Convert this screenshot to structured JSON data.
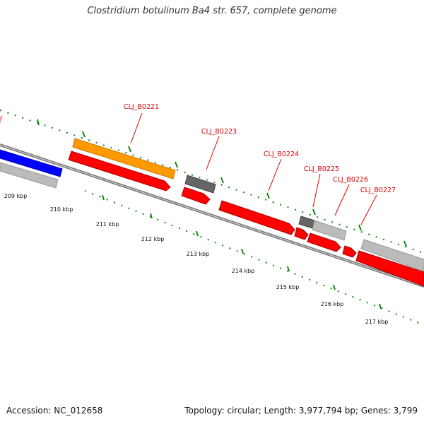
{
  "title": "Clostridium botulinum Ba4 str. 657, complete genome",
  "footer": {
    "accession": "Accession: NC_012658",
    "stats": "Topology: circular; Length: 3,977,794 bp; Genes: 3,799"
  },
  "colors": {
    "forward_cds": "#ff0000",
    "reverse_cds": "#bbbbbb",
    "dark_feature": "#666666",
    "blue_feature": "#0000ff",
    "orange_feature": "#ff9900",
    "pink_feature": "#ff9999",
    "backbone": "#777777",
    "dotted_track": "#118811",
    "label_line": "#dd0000"
  },
  "scale_labels": [
    "209 kbp",
    "210 kbp",
    "211 kbp",
    "212 kbp",
    "213 kbp",
    "214 kbp",
    "215 kbp",
    "216 kbp",
    "217 kbp"
  ],
  "gene_labels": [
    "CLJ_B0221",
    "CLJ_B0223",
    "CLJ_B0224",
    "CLJ_B0225",
    "CLJ_B0226",
    "CLJ_B0227"
  ]
}
